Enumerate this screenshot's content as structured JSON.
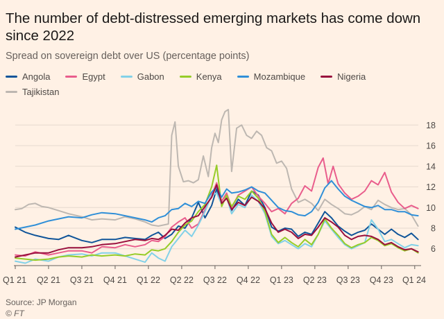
{
  "header": {
    "title": "The number of debt-distressed emerging markets has come down since 2022",
    "subtitle": "Spread on sovereign debt over US (percentage points)"
  },
  "footer": {
    "source": "Source: JP Morgan",
    "credit": "© FT"
  },
  "chart_data": {
    "type": "line",
    "title": "The number of debt-distressed emerging markets has come down since 2022",
    "subtitle": "Spread on sovereign debt over US (percentage points)",
    "xlabel": "",
    "ylabel": "",
    "x_tick_labels": [
      "Q1 21",
      "Q2 21",
      "Q3 21",
      "Q4 21",
      "Q1 22",
      "Q2 22",
      "Q3 22",
      "Q4 22",
      "Q1 23",
      "Q2 23",
      "Q3 23",
      "Q4 23",
      "Q1 24"
    ],
    "y_ticks": [
      6,
      8,
      10,
      12,
      14,
      16,
      18
    ],
    "ylim": [
      4.3,
      19.5
    ],
    "x_range_quarters": [
      0,
      12.15
    ],
    "grid": "horizontal",
    "legend_position": "top",
    "series": [
      {
        "name": "Angola",
        "color": "#0f5499",
        "x": [
          0,
          0.3,
          0.6,
          1,
          1.3,
          1.6,
          2,
          2.3,
          2.6,
          3,
          3.3,
          3.6,
          3.9,
          4.1,
          4.3,
          4.5,
          4.7,
          4.9,
          5.1,
          5.3,
          5.5,
          5.7,
          5.9,
          6.05,
          6.2,
          6.35,
          6.5,
          6.7,
          6.9,
          7.1,
          7.3,
          7.5,
          7.7,
          7.9,
          8.1,
          8.3,
          8.5,
          8.7,
          8.9,
          9.1,
          9.3,
          9.5,
          9.7,
          9.9,
          10.1,
          10.3,
          10.5,
          10.7,
          10.9,
          11.1,
          11.3,
          11.5,
          11.7,
          11.9,
          12.1
        ],
        "values": [
          8.1,
          7.6,
          7.3,
          7.0,
          6.9,
          7.3,
          6.8,
          6.6,
          6.9,
          6.9,
          7.1,
          7.0,
          6.9,
          7.3,
          7.6,
          7.0,
          7.4,
          8.2,
          8.0,
          9.0,
          10.5,
          9.0,
          10.2,
          11.8,
          10.3,
          11.0,
          9.7,
          10.8,
          10.2,
          11.6,
          11.2,
          10.0,
          8.1,
          7.7,
          8.0,
          7.9,
          7.2,
          7.6,
          7.4,
          8.5,
          9.6,
          9.0,
          8.2,
          7.7,
          7.3,
          7.6,
          7.8,
          8.4,
          7.9,
          7.4,
          7.9,
          7.4,
          7.1,
          7.5,
          6.9
        ]
      },
      {
        "name": "Egypt",
        "color": "#e95d8c",
        "x": [
          0,
          0.3,
          0.6,
          1,
          1.3,
          1.6,
          2,
          2.3,
          2.6,
          3,
          3.3,
          3.6,
          3.9,
          4.1,
          4.3,
          4.5,
          4.7,
          4.9,
          5.1,
          5.3,
          5.5,
          5.7,
          5.9,
          6.05,
          6.2,
          6.35,
          6.5,
          6.7,
          6.9,
          7.1,
          7.3,
          7.5,
          7.7,
          7.9,
          8.1,
          8.3,
          8.5,
          8.7,
          8.9,
          9.1,
          9.25,
          9.4,
          9.55,
          9.7,
          9.9,
          10.1,
          10.3,
          10.5,
          10.7,
          10.9,
          11.1,
          11.3,
          11.5,
          11.7,
          11.9,
          12.1
        ],
        "values": [
          5.4,
          5.3,
          5.7,
          5.4,
          5.6,
          5.8,
          5.8,
          5.6,
          6.2,
          6.1,
          6.4,
          6.2,
          6.4,
          6.8,
          6.7,
          7.2,
          8.1,
          8.6,
          9.0,
          8.0,
          8.4,
          9.8,
          11.2,
          12.4,
          10.6,
          11.4,
          10.0,
          11.2,
          11.6,
          12.0,
          11.1,
          10.4,
          9.6,
          9.9,
          9.4,
          10.4,
          10.9,
          12.1,
          11.6,
          13.9,
          14.8,
          12.3,
          14.0,
          12.3,
          11.4,
          10.8,
          11.1,
          11.6,
          12.6,
          12.2,
          13.4,
          11.5,
          10.5,
          9.9,
          10.2,
          9.9
        ]
      },
      {
        "name": "Gabon",
        "color": "#82d1e8",
        "x": [
          0,
          0.3,
          0.6,
          1,
          1.3,
          1.6,
          2,
          2.3,
          2.6,
          3,
          3.3,
          3.6,
          3.9,
          4.1,
          4.3,
          4.5,
          4.7,
          4.9,
          5.1,
          5.3,
          5.5,
          5.7,
          5.9,
          6.05,
          6.2,
          6.35,
          6.5,
          6.7,
          6.9,
          7.1,
          7.3,
          7.5,
          7.7,
          7.9,
          8.1,
          8.3,
          8.5,
          8.7,
          8.9,
          9.1,
          9.3,
          9.5,
          9.7,
          9.9,
          10.1,
          10.3,
          10.5,
          10.7,
          10.9,
          11.1,
          11.3,
          11.5,
          11.7,
          11.9,
          12.1
        ],
        "values": [
          4.8,
          4.6,
          5.0,
          4.8,
          5.2,
          5.4,
          5.5,
          5.3,
          5.6,
          5.6,
          5.3,
          5.0,
          4.7,
          5.6,
          5.1,
          4.8,
          6.2,
          7.0,
          7.8,
          7.2,
          8.3,
          9.6,
          11.2,
          11.4,
          10.3,
          11.0,
          9.4,
          10.3,
          10.0,
          11.2,
          10.6,
          9.4,
          7.2,
          6.5,
          6.8,
          6.4,
          6.0,
          6.5,
          6.2,
          7.4,
          8.7,
          7.9,
          7.1,
          6.4,
          6.0,
          6.3,
          6.6,
          8.8,
          7.9,
          6.7,
          6.9,
          6.5,
          6.1,
          6.4,
          6.3
        ]
      },
      {
        "name": "Kenya",
        "color": "#96cc28",
        "x": [
          0,
          0.3,
          0.6,
          1,
          1.3,
          1.6,
          2,
          2.3,
          2.6,
          3,
          3.3,
          3.6,
          3.9,
          4.1,
          4.3,
          4.5,
          4.7,
          4.9,
          5.1,
          5.3,
          5.5,
          5.7,
          5.9,
          6.05,
          6.2,
          6.35,
          6.5,
          6.7,
          6.9,
          7.1,
          7.3,
          7.5,
          7.7,
          7.9,
          8.1,
          8.3,
          8.5,
          8.7,
          8.9,
          9.1,
          9.3,
          9.5,
          9.7,
          9.9,
          10.1,
          10.3,
          10.5,
          10.7,
          10.9,
          11.1,
          11.3,
          11.5,
          11.7,
          11.9,
          12.1
        ],
        "values": [
          5.1,
          5.0,
          4.9,
          5.0,
          5.2,
          5.3,
          5.2,
          5.4,
          5.3,
          5.4,
          5.3,
          5.5,
          5.4,
          5.9,
          5.8,
          6.0,
          6.7,
          7.6,
          8.3,
          8.7,
          9.6,
          10.3,
          12.0,
          14.1,
          10.1,
          11.2,
          10.1,
          11.1,
          10.8,
          11.6,
          10.9,
          9.6,
          7.4,
          6.6,
          7.1,
          6.6,
          6.2,
          6.9,
          6.4,
          7.4,
          8.9,
          8.0,
          7.3,
          6.5,
          6.1,
          6.4,
          6.6,
          7.1,
          6.8,
          6.3,
          6.5,
          6.1,
          5.8,
          6.0,
          5.6
        ]
      },
      {
        "name": "Mozambique",
        "color": "#2f8fd8",
        "x": [
          0,
          0.3,
          0.6,
          1,
          1.3,
          1.6,
          2,
          2.3,
          2.6,
          3,
          3.3,
          3.6,
          3.9,
          4.1,
          4.3,
          4.5,
          4.7,
          4.9,
          5.1,
          5.3,
          5.5,
          5.7,
          5.9,
          6.05,
          6.2,
          6.35,
          6.5,
          6.7,
          6.9,
          7.1,
          7.3,
          7.5,
          7.7,
          7.9,
          8.1,
          8.3,
          8.5,
          8.7,
          8.9,
          9.1,
          9.3,
          9.5,
          9.7,
          9.9,
          10.1,
          10.3,
          10.5,
          10.7,
          10.9,
          11.1,
          11.3,
          11.5,
          11.7,
          11.9,
          12.1
        ],
        "values": [
          7.9,
          8.1,
          8.3,
          8.7,
          8.9,
          9.1,
          9.0,
          9.3,
          9.5,
          9.4,
          9.2,
          9.0,
          8.8,
          8.6,
          9.0,
          9.2,
          9.8,
          9.9,
          10.4,
          10.1,
          10.6,
          10.4,
          11.5,
          12.0,
          11.0,
          11.8,
          11.4,
          11.5,
          11.7,
          12.0,
          11.6,
          11.4,
          10.7,
          10.0,
          9.7,
          9.6,
          9.3,
          9.2,
          9.6,
          10.5,
          11.9,
          12.6,
          11.8,
          11.1,
          10.7,
          10.4,
          10.1,
          10.0,
          10.2,
          9.8,
          9.8,
          9.6,
          9.6,
          9.3,
          9.2
        ]
      },
      {
        "name": "Nigeria",
        "color": "#990f3d",
        "x": [
          0,
          0.3,
          0.6,
          1,
          1.3,
          1.6,
          2,
          2.3,
          2.6,
          3,
          3.3,
          3.6,
          3.9,
          4.1,
          4.3,
          4.5,
          4.7,
          4.9,
          5.1,
          5.3,
          5.5,
          5.7,
          5.9,
          6.05,
          6.2,
          6.35,
          6.5,
          6.7,
          6.9,
          7.1,
          7.3,
          7.5,
          7.7,
          7.9,
          8.1,
          8.3,
          8.5,
          8.7,
          8.9,
          9.1,
          9.3,
          9.5,
          9.7,
          9.9,
          10.1,
          10.3,
          10.5,
          10.7,
          10.9,
          11.1,
          11.3,
          11.5,
          11.7,
          11.9,
          12.1
        ],
        "values": [
          5.2,
          5.4,
          5.6,
          5.6,
          5.9,
          6.1,
          6.1,
          6.2,
          6.4,
          6.5,
          6.7,
          6.9,
          6.8,
          7.0,
          6.9,
          7.3,
          7.9,
          7.8,
          8.5,
          9.0,
          9.2,
          10.1,
          11.0,
          12.2,
          10.4,
          10.9,
          9.8,
          10.5,
          10.2,
          11.0,
          10.6,
          9.9,
          8.5,
          7.6,
          7.9,
          7.6,
          7.0,
          7.4,
          7.3,
          8.1,
          9.0,
          8.6,
          8.1,
          7.3,
          6.9,
          7.2,
          7.3,
          7.2,
          6.9,
          6.4,
          6.6,
          6.2,
          5.9,
          6.0,
          5.7
        ]
      },
      {
        "name": "Tajikistan",
        "color": "#bdb7b1",
        "x": [
          0,
          0.2,
          0.4,
          0.6,
          0.8,
          1,
          1.3,
          1.6,
          2,
          2.3,
          2.6,
          3,
          3.3,
          3.6,
          3.9,
          4.1,
          4.3,
          4.6,
          4.7,
          4.8,
          4.9,
          5.05,
          5.2,
          5.35,
          5.5,
          5.65,
          5.8,
          5.9,
          6.0,
          6.1,
          6.2,
          6.3,
          6.4,
          6.5,
          6.65,
          6.8,
          6.95,
          7.1,
          7.25,
          7.4,
          7.55,
          7.7,
          7.85,
          8.0,
          8.15,
          8.3,
          8.5,
          8.7,
          8.9,
          9.1,
          9.3,
          9.5,
          9.7,
          9.9,
          10.1,
          10.3,
          10.5,
          10.7,
          10.9,
          11.1,
          11.3,
          11.5,
          11.7,
          11.9,
          12.1
        ],
        "values": [
          9.8,
          9.9,
          10.3,
          10.4,
          10.1,
          10.0,
          9.7,
          9.4,
          9.1,
          8.8,
          8.9,
          8.8,
          9.1,
          8.9,
          8.6,
          8.3,
          8.2,
          8.4,
          17.0,
          18.3,
          14.0,
          12.5,
          12.6,
          12.4,
          12.7,
          15.0,
          13.0,
          15.8,
          17.2,
          16.3,
          18.5,
          19.3,
          19.5,
          13.5,
          17.7,
          18.0,
          17.0,
          16.7,
          17.4,
          17.0,
          15.8,
          15.5,
          14.3,
          14.5,
          13.8,
          11.8,
          10.5,
          10.8,
          10.4,
          9.7,
          10.8,
          10.3,
          9.9,
          9.4,
          9.3,
          9.6,
          10.1,
          9.8,
          10.7,
          10.3,
          10.0,
          9.8,
          9.9,
          9.3,
          8.2
        ]
      }
    ]
  }
}
